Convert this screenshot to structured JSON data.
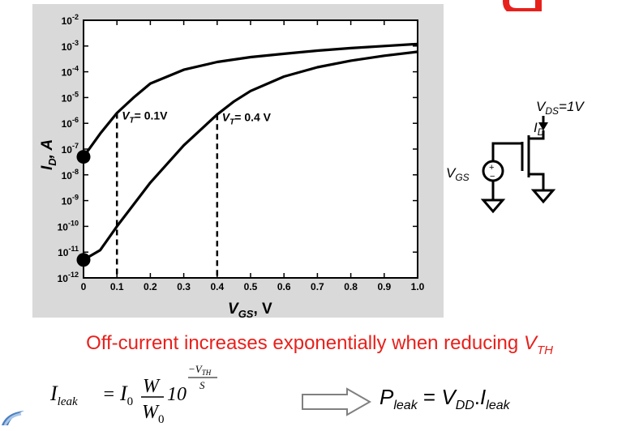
{
  "chart_data": {
    "type": "line",
    "xlabel": "V",
    "xlabel_sub": "GS",
    "xlabel_suffix": ", V",
    "ylabel": "I",
    "ylabel_sub": "D",
    "ylabel_suffix": ", A",
    "xlim": [
      0,
      1.0
    ],
    "ylim_exponent": [
      -12,
      -2
    ],
    "scale_y": "log",
    "x_ticks": [
      "0",
      "0.1",
      "0.2",
      "0.3",
      "0.4",
      "0.5",
      "0.6",
      "0.7",
      "0.8",
      "0.9",
      "1.0"
    ],
    "y_ticks": [
      {
        "base": "10",
        "exp": "-2"
      },
      {
        "base": "10",
        "exp": "-3"
      },
      {
        "base": "10",
        "exp": "-4"
      },
      {
        "base": "10",
        "exp": "-5"
      },
      {
        "base": "10",
        "exp": "-6"
      },
      {
        "base": "10",
        "exp": "-7"
      },
      {
        "base": "10",
        "exp": "-8"
      },
      {
        "base": "10",
        "exp": "-9"
      },
      {
        "base": "10",
        "exp": "-10"
      },
      {
        "base": "10",
        "exp": "-11"
      },
      {
        "base": "10",
        "exp": "-12"
      }
    ],
    "series": [
      {
        "points": [
          [
            0,
            5e-08
          ],
          [
            0.05,
            4e-07
          ],
          [
            0.1,
            2.5e-06
          ],
          [
            0.15,
            1e-05
          ],
          [
            0.2,
            3.5e-05
          ],
          [
            0.3,
            0.00012
          ],
          [
            0.4,
            0.00024
          ],
          [
            0.5,
            0.00037
          ],
          [
            0.6,
            0.0005
          ],
          [
            0.7,
            0.00066
          ],
          [
            0.8,
            0.00083
          ],
          [
            0.9,
            0.001
          ],
          [
            1.0,
            0.0012
          ]
        ],
        "marker": {
          "x": 0,
          "y": 5e-08
        }
      },
      {
        "points": [
          [
            0,
            5e-12
          ],
          [
            0.05,
            1.2e-11
          ],
          [
            0.1,
            1e-10
          ],
          [
            0.2,
            5e-09
          ],
          [
            0.3,
            1.4e-07
          ],
          [
            0.4,
            2.2e-06
          ],
          [
            0.45,
            7e-06
          ],
          [
            0.5,
            1.8e-05
          ],
          [
            0.6,
            6.5e-05
          ],
          [
            0.7,
            0.00015
          ],
          [
            0.8,
            0.00027
          ],
          [
            0.9,
            0.00042
          ],
          [
            1.0,
            0.0006
          ]
        ],
        "marker": {
          "x": 0,
          "y": 5e-12
        }
      }
    ],
    "annotations": [
      {
        "x": 0.1,
        "y": 2.5e-06,
        "label_main": "V",
        "label_sub": "T",
        "label_rest": "= 0.1V"
      },
      {
        "x": 0.4,
        "y": 2.2e-06,
        "label_main": "V",
        "label_sub": "T",
        "label_rest": "= 0.4 V"
      }
    ],
    "colors": {
      "line": "#000000",
      "panel": "#d9d9d9"
    }
  },
  "caption": {
    "text": "Off-current increases exponentially when reducing ",
    "var": "V",
    "var_sub": "TH",
    "color": "#e8201b"
  },
  "formula": {
    "lhs": "I",
    "lhs_sub": "leak",
    "eq": "=",
    "i0": "I",
    "i0_sub": "0",
    "num": "W",
    "den": "W",
    "den_sub": "0",
    "base": "10",
    "exp_num": "−V",
    "exp_num_sub": "TH",
    "exp_den": "S"
  },
  "power": {
    "p": "P",
    "p_sub": "leak",
    "eq": " = ",
    "v": "V",
    "v_sub": "DD",
    "dot": ".",
    "i": "I",
    "i_sub": "leak"
  },
  "circuit": {
    "vds": "V",
    "vds_sub": "DS",
    "vds_val": "=1V",
    "id": "I",
    "id_sub": "D",
    "vgs": "V",
    "vgs_sub": "GS",
    "plus": "+",
    "minus": "−"
  }
}
